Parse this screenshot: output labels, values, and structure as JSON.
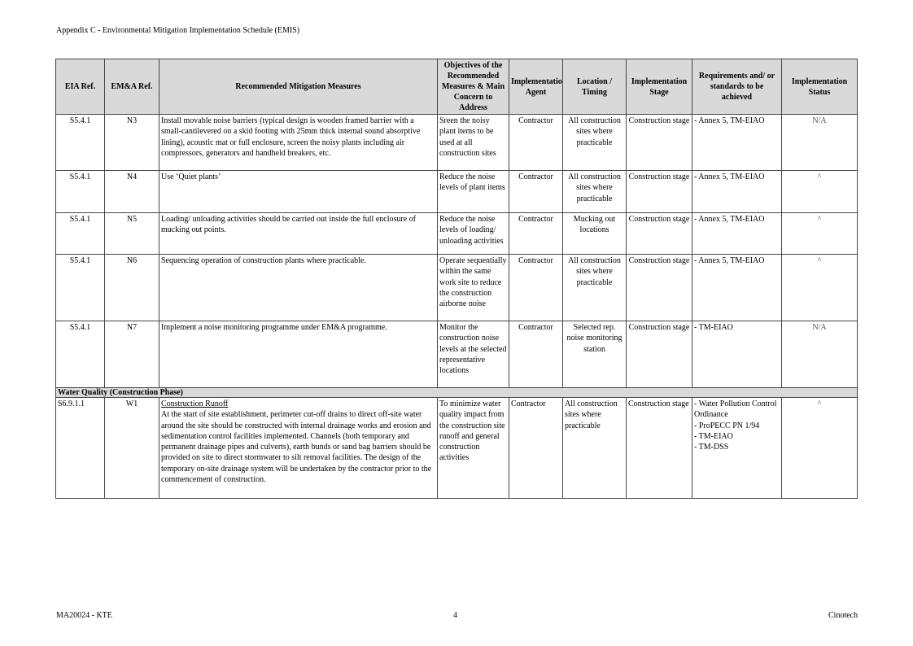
{
  "header": {
    "title": "Appendix C - Environmental Mitigation Implementation Schedule (EMIS)"
  },
  "table": {
    "columns": [
      "EIA Ref.",
      "EM&A Ref.",
      "Recommended Mitigation Measures",
      "Objectives of the Recommended Measures & Main Concern to Address",
      "Implementation Agent",
      "Location / Timing",
      "Implementation Stage",
      "Requirements and/ or standards to be achieved",
      "Implementation Status"
    ],
    "rows": [
      {
        "eia": "S5.4.1",
        "ema": "N3",
        "measure": "Install movable noise barriers (typical design is wooden framed barrier with a small-cantilevered on a skid footing with 25mm thick internal sound absorptive lining), acoustic mat or full enclosure, screen the noisy plants including air compressors, generators and handheld breakers, etc.",
        "objective": "Sreen the noisy plant items to be used at all construction sites",
        "agent": "Contractor",
        "location": "All construction sites where practicable",
        "stage": "Construction stage",
        "req": "- Annex 5, TM-EIAO",
        "status": "N/A"
      },
      {
        "eia": "S5.4.1",
        "ema": "N4",
        "measure": "Use ‘Quiet plants’",
        "objective": "Reduce the noise levels of plant items",
        "agent": "Contractor",
        "location": "All construction sites where practicable",
        "stage": "Construction stage",
        "req": "- Annex 5, TM-EIAO",
        "status": "^"
      },
      {
        "eia": "S5.4.1",
        "ema": "N5",
        "measure": "Loading/ unloading activities should be carried out inside the full enclosure of mucking out points.",
        "objective": "Reduce the noise levels of loading/ unloading activities",
        "agent": "Contractor",
        "location": "Mucking out locations",
        "stage": "Construction stage",
        "req": "- Annex 5, TM-EIAO",
        "status": "^"
      },
      {
        "eia": "S5.4.1",
        "ema": "N6",
        "measure": "Sequencing operation of construction plants where practicable.",
        "objective": "Operate sequentially within the same work site to reduce the construction airborne noise",
        "agent": "Contractor",
        "location": "All construction sites where practicable",
        "stage": "Construction stage",
        "req": "- Annex 5, TM-EIAO",
        "status": "^"
      },
      {
        "eia": "S5.4.1",
        "ema": "N7",
        "measure": "Implement a noise monitoring programme under EM&A programme.",
        "objective": "Monitor the construction noise levels at the selected representative locations",
        "agent": "Contractor",
        "location": "Selected rep. noise monitoring station",
        "stage": "Construction stage",
        "req": "- TM-EIAO",
        "status": "N/A"
      }
    ],
    "section": "Water Quality (Construction Phase)",
    "w1": {
      "eia": "S6.9.1.1",
      "ema": "W1",
      "measure_title": "Construction Runoff",
      "measure": "At the start of site establishment, perimeter cut-off drains to direct off-site water around the site should be constructed with internal drainage works and erosion and sedimentation control facilities implemented.  Channels (both temporary and permanent drainage pipes and culverts), earth bunds or sand bag barriers should be provided on site to direct stormwater to silt removal facilities.  The design of the temporary on-site drainage system will be undertaken by the contractor prior to the commencement of construction.",
      "objective": "To minimize water quality impact from the construction site runoff and general construction activities",
      "agent": "Contractor",
      "location": "All construction sites where practicable",
      "stage": "Construction stage",
      "req": [
        "- Water Pollution Control Ordinance",
        "- ProPECC PN 1/94",
        "- TM-EIAO",
        "- TM-DSS"
      ],
      "status": "^"
    }
  },
  "footer": {
    "left": "MA20024 - KTE",
    "page": "4",
    "right": "Cinotech"
  }
}
